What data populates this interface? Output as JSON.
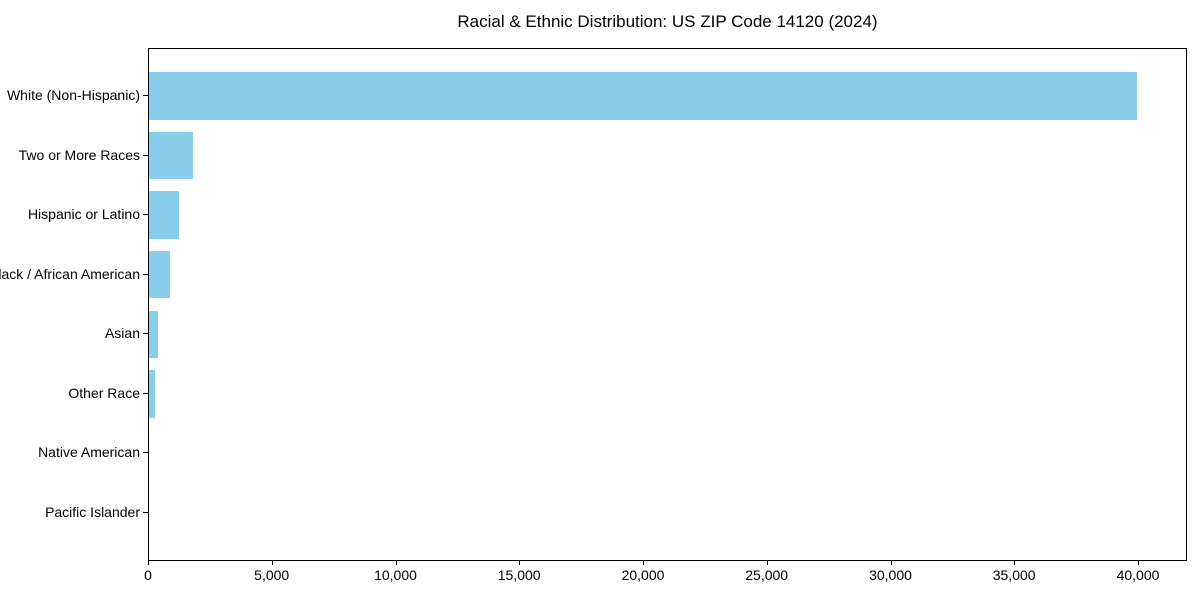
{
  "chart": {
    "bar_color": "#87CEEB",
    "axis_color": "#000000",
    "background_color": "#FFFFFF",
    "text_color": "#000000"
  },
  "chart_data": {
    "type": "bar",
    "orientation": "horizontal",
    "title": "Racial & Ethnic Distribution: US ZIP Code 14120 (2024)",
    "categories": [
      "White (Non-Hispanic)",
      "Two or More Races",
      "Hispanic or Latino",
      "Black / African American",
      "Asian",
      "Other Race",
      "Native American",
      "Pacific Islander"
    ],
    "values": [
      39900,
      1760,
      1230,
      830,
      370,
      250,
      0,
      0
    ],
    "xlabel": "",
    "ylabel": "",
    "xlim": [
      0,
      41900
    ],
    "xticks": [
      0,
      5000,
      10000,
      15000,
      20000,
      25000,
      30000,
      35000,
      40000
    ],
    "xtick_labels": [
      "0",
      "5,000",
      "10,000",
      "15,000",
      "20,000",
      "25,000",
      "30,000",
      "35,000",
      "40,000"
    ],
    "grid": false,
    "legend": null,
    "bar_height_ratio": 0.8
  }
}
